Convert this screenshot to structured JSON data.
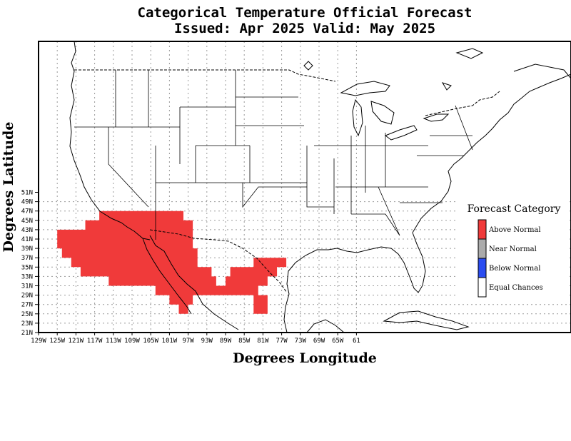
{
  "title_line1": "Categorical Temperature Official Forecast",
  "title_line2": "Issued: Apr 2025 Valid: May 2025",
  "xlabel": "Degrees Longitude",
  "ylabel": "Degrees Latitude",
  "lon_ticks": [
    "129W",
    "125W",
    "121W",
    "117W",
    "113W",
    "109W",
    "105W",
    "101W",
    "97W",
    "93W",
    "89W",
    "85W",
    "81W",
    "77W",
    "73W",
    "69W",
    "65W",
    "61"
  ],
  "lat_ticks": [
    "51N",
    "49N",
    "47N",
    "45N",
    "43N",
    "41N",
    "39N",
    "37N",
    "35N",
    "33N",
    "31N",
    "29N",
    "27N",
    "25N",
    "23N",
    "21N"
  ],
  "legend": {
    "title": "Forecast Category",
    "items": [
      {
        "label": "Above Normal",
        "color": "#f03a3a"
      },
      {
        "label": "Near Normal",
        "color": "#aaaaaa"
      },
      {
        "label": "Below Normal",
        "color": "#2a4cf0"
      },
      {
        "label": "Equal Chances",
        "color": "#ffffff"
      }
    ]
  },
  "forecast_regions": [
    {
      "category": "Above Normal",
      "region": "Western United States",
      "outline_lonlat": [
        [
          -125,
          43
        ],
        [
          -119,
          43
        ],
        [
          -119,
          45
        ],
        [
          -116,
          45
        ],
        [
          -116,
          47
        ],
        [
          -98,
          47
        ],
        [
          -98,
          45
        ],
        [
          -96,
          45
        ],
        [
          -96,
          39
        ],
        [
          -95,
          39
        ],
        [
          -95,
          35
        ],
        [
          -92,
          35
        ],
        [
          -92,
          33
        ],
        [
          -91,
          33
        ],
        [
          -91,
          31
        ],
        [
          -89,
          31
        ],
        [
          -89,
          33
        ],
        [
          -88,
          33
        ],
        [
          -88,
          35
        ],
        [
          -83,
          35
        ],
        [
          -83,
          37
        ],
        [
          -76,
          37
        ],
        [
          -76,
          35
        ],
        [
          -78,
          35
        ],
        [
          -78,
          33
        ],
        [
          -80,
          33
        ],
        [
          -80,
          31
        ],
        [
          -82,
          31
        ],
        [
          -82,
          29
        ],
        [
          -80,
          29
        ],
        [
          -80,
          25
        ],
        [
          -83,
          25
        ],
        [
          -83,
          29
        ],
        [
          -96,
          29
        ],
        [
          -96,
          27
        ],
        [
          -97,
          27
        ],
        [
          -97,
          25
        ],
        [
          -99,
          25
        ],
        [
          -99,
          27
        ],
        [
          -101,
          27
        ],
        [
          -101,
          29
        ],
        [
          -104,
          29
        ],
        [
          -104,
          31
        ],
        [
          -114,
          31
        ],
        [
          -114,
          33
        ],
        [
          -120,
          33
        ],
        [
          -120,
          35
        ],
        [
          -122,
          35
        ],
        [
          -122,
          37
        ],
        [
          -124,
          37
        ],
        [
          -124,
          39
        ],
        [
          -125,
          39
        ]
      ]
    }
  ]
}
